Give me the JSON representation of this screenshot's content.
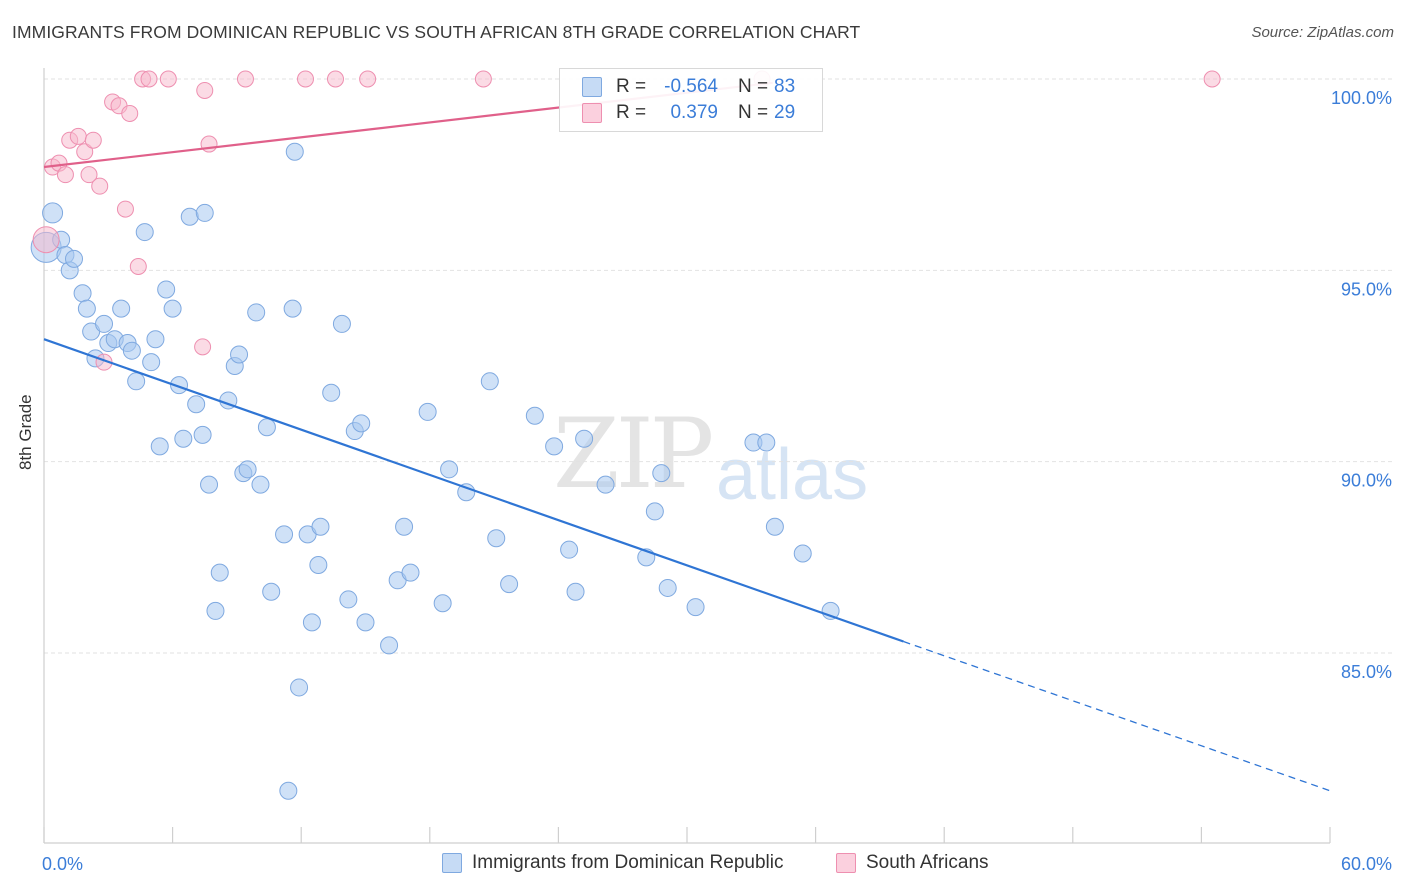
{
  "header": {
    "title": "IMMIGRANTS FROM DOMINICAN REPUBLIC VS SOUTH AFRICAN 8TH GRADE CORRELATION CHART",
    "source": "Source: ZipAtlas.com"
  },
  "watermark": {
    "zip": "ZIP",
    "atlas": "atlas"
  },
  "legend": {
    "rows": [
      {
        "r_label": "R =",
        "r_value": "-0.564",
        "n_label": "N =",
        "n_value": "83",
        "color": "#a8c8f0"
      },
      {
        "r_label": "R =",
        "r_value": "0.379",
        "n_label": "N =",
        "n_value": "29",
        "color": "#f8b8cc"
      }
    ]
  },
  "bottom_legend": {
    "series1": "Immigrants from Dominican Republic",
    "series2": "South Africans"
  },
  "colors": {
    "blue_fill": "#a8c8f0",
    "blue_line": "#2f75d4",
    "pink_fill": "#f8b8cc",
    "pink_line": "#e0608a",
    "axis_text": "#3b7dd8"
  },
  "chart_data": {
    "type": "scatter",
    "title": "IMMIGRANTS FROM DOMINICAN REPUBLIC VS SOUTH AFRICAN 8TH GRADE CORRELATION CHART",
    "xlabel": "",
    "ylabel": "8th Grade",
    "xlim": [
      0,
      60
    ],
    "ylim": [
      80.5,
      100.7
    ],
    "x_tick_labels": [
      "0.0%",
      "60.0%"
    ],
    "y_ticks": [
      85,
      90,
      95,
      100
    ],
    "y_tick_labels": [
      "85.0%",
      "90.0%",
      "95.0%",
      "100.0%"
    ],
    "grid": true,
    "series": [
      {
        "name": "Immigrants from Dominican Republic",
        "color": "#a8c8f0",
        "points": [
          [
            0.1,
            95.6
          ],
          [
            0.4,
            96.5
          ],
          [
            0.8,
            95.8
          ],
          [
            1.0,
            95.4
          ],
          [
            1.2,
            95.0
          ],
          [
            1.4,
            95.3
          ],
          [
            1.8,
            94.4
          ],
          [
            2.0,
            94.0
          ],
          [
            2.2,
            93.4
          ],
          [
            2.4,
            92.7
          ],
          [
            2.8,
            93.6
          ],
          [
            3.0,
            93.1
          ],
          [
            3.3,
            93.2
          ],
          [
            3.6,
            94.0
          ],
          [
            3.9,
            93.1
          ],
          [
            4.1,
            92.9
          ],
          [
            4.3,
            92.1
          ],
          [
            4.7,
            96.0
          ],
          [
            5.0,
            92.6
          ],
          [
            5.2,
            93.2
          ],
          [
            5.4,
            90.4
          ],
          [
            5.7,
            94.5
          ],
          [
            6.0,
            94.0
          ],
          [
            6.3,
            92.0
          ],
          [
            6.5,
            90.6
          ],
          [
            6.8,
            96.4
          ],
          [
            7.1,
            91.5
          ],
          [
            7.4,
            90.7
          ],
          [
            7.5,
            96.5
          ],
          [
            7.7,
            89.4
          ],
          [
            8.0,
            86.1
          ],
          [
            8.2,
            87.1
          ],
          [
            8.6,
            91.6
          ],
          [
            8.9,
            92.5
          ],
          [
            9.1,
            92.8
          ],
          [
            9.3,
            89.7
          ],
          [
            9.5,
            89.8
          ],
          [
            9.9,
            93.9
          ],
          [
            10.1,
            89.4
          ],
          [
            10.4,
            90.9
          ],
          [
            10.6,
            86.6
          ],
          [
            11.2,
            88.1
          ],
          [
            11.4,
            81.4
          ],
          [
            11.6,
            94.0
          ],
          [
            11.7,
            98.1
          ],
          [
            11.9,
            84.1
          ],
          [
            12.3,
            88.1
          ],
          [
            12.5,
            85.8
          ],
          [
            12.8,
            87.3
          ],
          [
            12.9,
            88.3
          ],
          [
            13.4,
            91.8
          ],
          [
            13.9,
            93.6
          ],
          [
            14.2,
            86.4
          ],
          [
            14.5,
            90.8
          ],
          [
            14.8,
            91.0
          ],
          [
            15.0,
            85.8
          ],
          [
            16.1,
            85.2
          ],
          [
            16.5,
            86.9
          ],
          [
            16.8,
            88.3
          ],
          [
            17.1,
            87.1
          ],
          [
            17.9,
            91.3
          ],
          [
            18.6,
            86.3
          ],
          [
            18.9,
            89.8
          ],
          [
            19.7,
            89.2
          ],
          [
            20.8,
            92.1
          ],
          [
            21.1,
            88.0
          ],
          [
            21.7,
            86.8
          ],
          [
            22.9,
            91.2
          ],
          [
            23.8,
            90.4
          ],
          [
            24.5,
            87.7
          ],
          [
            24.8,
            86.6
          ],
          [
            25.2,
            90.6
          ],
          [
            26.2,
            89.4
          ],
          [
            28.1,
            87.5
          ],
          [
            28.5,
            88.7
          ],
          [
            28.8,
            89.7
          ],
          [
            29.1,
            86.7
          ],
          [
            30.4,
            86.2
          ],
          [
            33.1,
            90.5
          ],
          [
            33.7,
            90.5
          ],
          [
            34.1,
            88.3
          ],
          [
            35.4,
            87.6
          ],
          [
            36.7,
            86.1
          ]
        ]
      },
      {
        "name": "South Africans",
        "color": "#f8b8cc",
        "points": [
          [
            0.1,
            95.8
          ],
          [
            0.4,
            97.7
          ],
          [
            0.7,
            97.8
          ],
          [
            1.0,
            97.5
          ],
          [
            1.2,
            98.4
          ],
          [
            1.6,
            98.5
          ],
          [
            1.9,
            98.1
          ],
          [
            2.1,
            97.5
          ],
          [
            2.3,
            98.4
          ],
          [
            2.6,
            97.2
          ],
          [
            2.8,
            92.6
          ],
          [
            3.2,
            99.4
          ],
          [
            3.5,
            99.3
          ],
          [
            3.8,
            96.6
          ],
          [
            4.0,
            99.1
          ],
          [
            4.4,
            95.1
          ],
          [
            4.6,
            100.0
          ],
          [
            4.9,
            100.0
          ],
          [
            5.8,
            100.0
          ],
          [
            7.4,
            93.0
          ],
          [
            7.5,
            99.7
          ],
          [
            7.7,
            98.3
          ],
          [
            9.4,
            100.0
          ],
          [
            12.2,
            100.0
          ],
          [
            13.6,
            100.0
          ],
          [
            15.1,
            100.0
          ],
          [
            20.5,
            100.0
          ],
          [
            33.5,
            100.0
          ],
          [
            54.5,
            100.0
          ]
        ]
      }
    ],
    "trendlines": [
      {
        "series": "Immigrants from Dominican Republic",
        "from": [
          0,
          93.2
        ],
        "to_solid": [
          40.1,
          85.3
        ],
        "to_dashed": [
          60,
          81.4
        ]
      },
      {
        "series": "South Africans",
        "from": [
          0,
          97.7
        ],
        "to": [
          34,
          99.9
        ]
      }
    ]
  }
}
